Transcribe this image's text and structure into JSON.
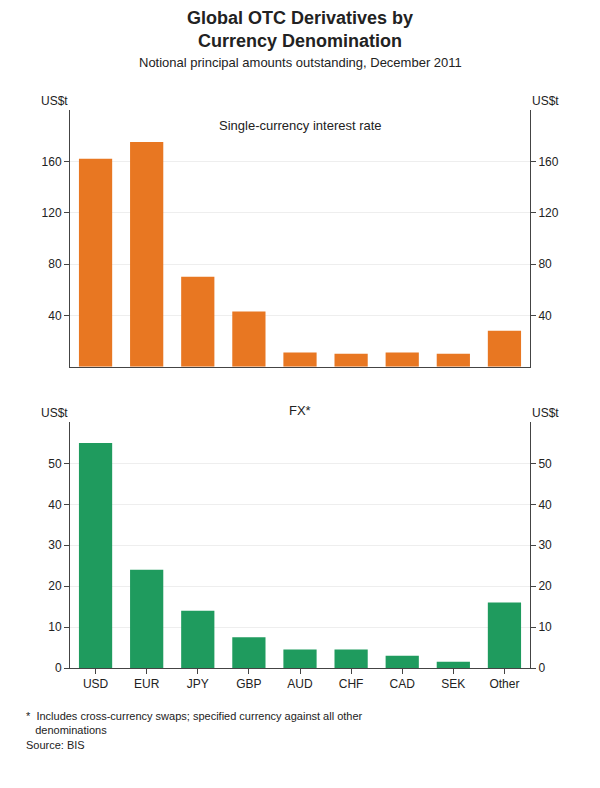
{
  "chart_data": [
    {
      "type": "bar",
      "title": "Global OTC Derivatives by\nCurrency Denomination",
      "subtitle": "Notional principal amounts outstanding, December 2011",
      "categories": [
        "USD",
        "EUR",
        "JPY",
        "GBP",
        "AUD",
        "CHF",
        "CAD",
        "SEK",
        "Other"
      ],
      "values": [
        162,
        175,
        70,
        43,
        11,
        10,
        11,
        10,
        28
      ],
      "color": "#E87722",
      "annotations": [
        "Single-currency interest rate"
      ],
      "ylabel": "US$t",
      "y2label": "US$t",
      "ylim": [
        0,
        200
      ],
      "yticks": [
        40,
        80,
        120,
        160
      ],
      "y2lim": [
        0,
        200
      ],
      "y2ticks": [
        40,
        80,
        120,
        160
      ],
      "grid": true,
      "tick_labels": "y"
    },
    {
      "type": "bar",
      "categories": [
        "USD",
        "EUR",
        "JPY",
        "GBP",
        "AUD",
        "CHF",
        "CAD",
        "SEK",
        "Other"
      ],
      "values": [
        55,
        24,
        14,
        7.5,
        4.5,
        4.5,
        3.0,
        1.5,
        16
      ],
      "color": "#1F9B5E",
      "annotations": [
        "FX*"
      ],
      "ylabel": "US$t",
      "y2label": "US$t",
      "ylim": [
        0,
        60
      ],
      "yticks": [
        0,
        10,
        20,
        30,
        40,
        50
      ],
      "y2lim": [
        0,
        60
      ],
      "y2ticks": [
        0,
        10,
        20,
        30,
        40,
        50
      ],
      "grid": true,
      "footnote": "*  Includes cross-currency swaps; specified currency against all other\n   denominations\nSource: BIS"
    }
  ]
}
